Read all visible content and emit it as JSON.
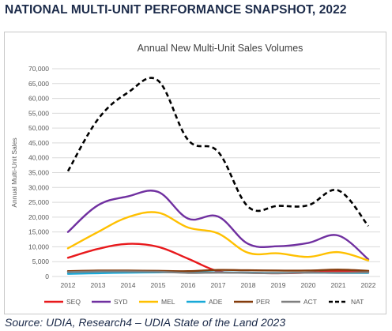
{
  "page": {
    "heading": "NATIONAL MULTI-UNIT PERFORMANCE SNAPSHOT, 2022",
    "source": "Source: UDIA, Research4  – UDIA State of the Land 2023"
  },
  "chart_data": {
    "type": "line",
    "title": "Annual New Multi-Unit Sales Volumes",
    "xlabel": "",
    "ylabel": "Annual Multi-Unit Sales",
    "ylim": [
      0,
      70000
    ],
    "yticks": [
      0,
      5000,
      10000,
      15000,
      20000,
      25000,
      30000,
      35000,
      40000,
      45000,
      50000,
      55000,
      60000,
      65000,
      70000
    ],
    "ytick_labels": [
      "0",
      "5,000",
      "10,000",
      "15,000",
      "20,000",
      "25,000",
      "30,000",
      "35,000",
      "40,000",
      "45,000",
      "50,000",
      "55,000",
      "60,000",
      "65,000",
      "70,000"
    ],
    "categories": [
      "2012",
      "2013",
      "2014",
      "2015",
      "2016",
      "2017",
      "2018",
      "2019",
      "2020",
      "2021",
      "2022"
    ],
    "grid": true,
    "legend_position": "bottom",
    "series": [
      {
        "name": "SEQ",
        "color": "#e8191c",
        "dash": "solid",
        "values": [
          6300,
          9300,
          11000,
          10000,
          6000,
          1800,
          1300,
          1100,
          1300,
          1900,
          1800
        ]
      },
      {
        "name": "SYD",
        "color": "#7030a0",
        "dash": "solid",
        "values": [
          15000,
          24000,
          27000,
          28500,
          19500,
          20200,
          11000,
          10200,
          11300,
          13800,
          5800
        ]
      },
      {
        "name": "MEL",
        "color": "#ffc000",
        "dash": "solid",
        "values": [
          9500,
          15000,
          20000,
          21500,
          16500,
          14500,
          8000,
          7800,
          6600,
          8200,
          5400
        ]
      },
      {
        "name": "ADE",
        "color": "#18a9d8",
        "dash": "solid",
        "values": [
          900,
          1100,
          1300,
          1400,
          1500,
          1400,
          1300,
          1200,
          1300,
          1200,
          1200
        ]
      },
      {
        "name": "PER",
        "color": "#843c0c",
        "dash": "solid",
        "values": [
          1800,
          2000,
          2000,
          1900,
          1800,
          2200,
          2100,
          2000,
          2000,
          2300,
          1900
        ]
      },
      {
        "name": "ACT",
        "color": "#7f7f7f",
        "dash": "solid",
        "values": [
          1500,
          1700,
          1700,
          1600,
          1200,
          1300,
          1200,
          1100,
          1300,
          1300,
          1400
        ]
      },
      {
        "name": "NAT",
        "color": "#000000",
        "dash": "dashed",
        "values": [
          35500,
          53000,
          62000,
          66000,
          46000,
          42000,
          23500,
          23800,
          24000,
          29000,
          17000
        ]
      }
    ]
  }
}
